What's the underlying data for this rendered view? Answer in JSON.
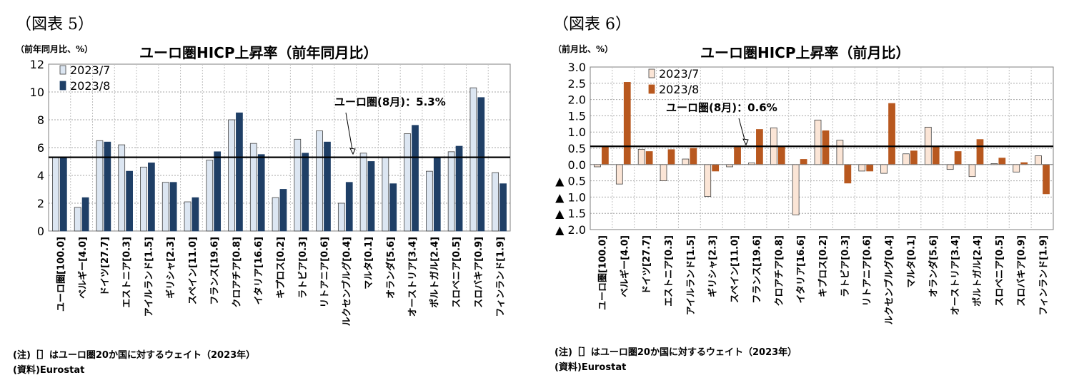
{
  "charts": [
    {
      "figure_label": "（図表 5）",
      "unit_label": "（前年同月比、%）",
      "notes": [
        "(注)［］はユーロ圏20か国に対するウェイト（2023年）",
        "(資料)Eurostat"
      ],
      "reference_annotation": "ユーロ圏(8月)：5.3%",
      "colors": {
        "series_1": "#dce6f2",
        "series_2": "#1f3f66",
        "reference": "#000000"
      }
    },
    {
      "figure_label": "（図表 6）",
      "unit_label": "（前月比、%）",
      "notes": [
        "(注)［］はユーロ圏20か国に対するウェイト（2023年）",
        "(資料)Eurostat"
      ],
      "reference_annotation": "ユーロ圏(8月)：0.6%",
      "colors": {
        "series_1": "#fbe5d6",
        "series_2": "#b8581f",
        "reference": "#000000"
      }
    }
  ],
  "chart_data": [
    {
      "type": "bar",
      "title": "ユーロ圏HICP上昇率（前年同月比）",
      "categories": [
        "ユーロ圏[100.0]",
        "ベルギー[4.0]",
        "ドイツ[27.7]",
        "エストニア[0.3]",
        "アイルランド[1.5]",
        "ギリシャ[2.3]",
        "スペイン[11.0]",
        "フランス[19.6]",
        "クロアチア[0.8]",
        "イタリア[16.6]",
        "キプロス[0.2]",
        "ラトビア[0.3]",
        "リトアニア[0.6]",
        "ルクセンブルグ[0.4]",
        "マルタ[0.1]",
        "オランダ[5.6]",
        "オーストリア[3.4]",
        "ポルトガル[2.4]",
        "スロベニア[0.5]",
        "スロバキア[0.9]",
        "フィンランド[1.9]"
      ],
      "series": [
        {
          "name": "2023/7",
          "values": [
            5.3,
            1.7,
            6.5,
            6.2,
            4.6,
            3.5,
            2.1,
            5.1,
            8.0,
            6.3,
            2.4,
            6.6,
            7.2,
            2.0,
            5.6,
            5.3,
            7.0,
            4.3,
            5.7,
            10.3,
            4.2
          ]
        },
        {
          "name": "2023/8",
          "values": [
            5.3,
            2.4,
            6.4,
            4.3,
            4.9,
            3.5,
            2.4,
            5.7,
            8.5,
            5.5,
            3.0,
            5.6,
            6.4,
            3.5,
            5.0,
            3.4,
            7.6,
            5.3,
            6.1,
            9.6,
            3.4
          ]
        }
      ],
      "reference_line": 5.3,
      "ylim": [
        0,
        12
      ],
      "yticks": [
        0,
        2,
        4,
        6,
        8,
        10,
        12
      ],
      "ytick_labels": [
        "0",
        "2",
        "4",
        "6",
        "8",
        "10",
        "12"
      ],
      "grid": true,
      "legend": "top-left"
    },
    {
      "type": "bar",
      "title": "ユーロ圏HICP上昇率（前月比）",
      "categories": [
        "ユーロ圏[100.0]",
        "ベルギー[4.0]",
        "ドイツ[27.7]",
        "エストニア[0.3]",
        "アイルランド[1.5]",
        "ギリシャ[2.3]",
        "スペイン[11.0]",
        "フランス[19.6]",
        "クロアチア[0.8]",
        "イタリア[16.6]",
        "キプロス[0.2]",
        "ラトビア[0.3]",
        "リトアニア[0.6]",
        "ルクセンブルグ[0.4]",
        "マルタ[0.1]",
        "オランダ[5.6]",
        "オーストリア[3.4]",
        "ポルトガル[2.4]",
        "スロベニア[0.5]",
        "スロバキア[0.9]",
        "フィンランド[1.9]"
      ],
      "series": [
        {
          "name": "2023/7",
          "values": [
            -0.07,
            -0.6,
            0.47,
            -0.5,
            0.17,
            -0.98,
            -0.07,
            0.05,
            1.13,
            -1.55,
            1.37,
            0.75,
            -0.2,
            -0.27,
            0.33,
            1.15,
            -0.15,
            -0.37,
            0.03,
            -0.23,
            0.27
          ]
        },
        {
          "name": "2023/8",
          "values": [
            0.56,
            2.53,
            0.4,
            0.46,
            0.5,
            -0.2,
            0.53,
            1.08,
            0.55,
            0.16,
            1.04,
            -0.57,
            -0.2,
            1.88,
            0.42,
            0.54,
            0.4,
            0.77,
            0.2,
            0.06,
            -0.9
          ]
        }
      ],
      "reference_line": 0.56,
      "ylim": [
        -2.0,
        3.0
      ],
      "yticks": [
        -2.0,
        -1.5,
        -1.0,
        -0.5,
        0.0,
        0.5,
        1.0,
        1.5,
        2.0,
        2.5,
        3.0
      ],
      "ytick_labels": [
        "▲ 2.0",
        "▲ 1.5",
        "▲ 1.0",
        "▲ 0.5",
        "0.0",
        "0.5",
        "1.0",
        "1.5",
        "2.0",
        "2.5",
        "3.0"
      ],
      "grid": true,
      "legend": "top-left"
    }
  ]
}
